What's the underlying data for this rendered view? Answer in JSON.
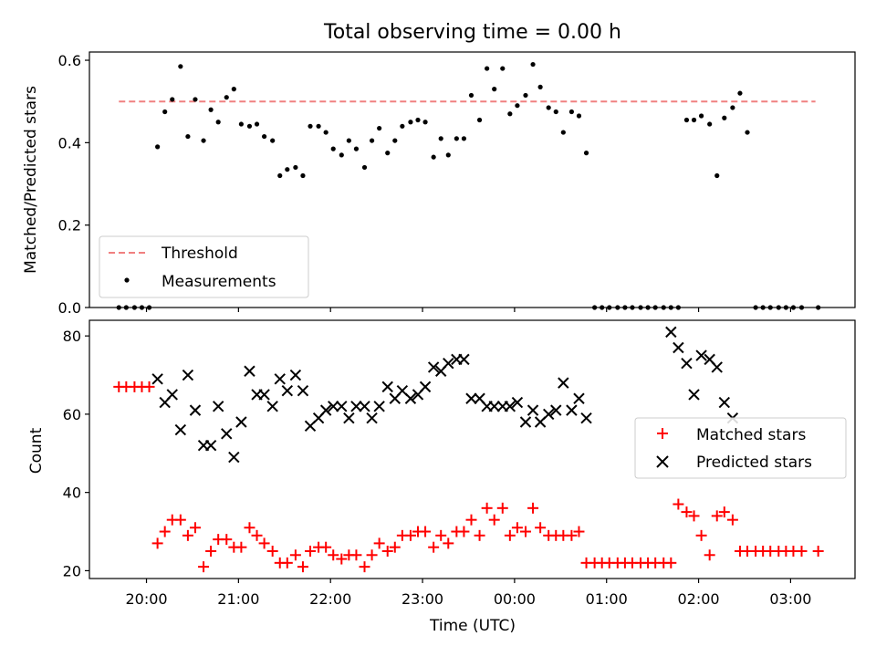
{
  "chart_data": [
    {
      "type": "scatter",
      "title": "Total observing time = 0.00 h",
      "xlabel": "",
      "ylabel": "Matched/Predicted stars",
      "xlim_hours": [
        19.38,
        27.7
      ],
      "ylim": [
        0.0,
        0.62
      ],
      "yticks": [
        0.0,
        0.2,
        0.4,
        0.6
      ],
      "ytick_labels": [
        "0.0",
        "0.2",
        "0.4",
        "0.6"
      ],
      "grid": false,
      "legend_placement": "lower-left",
      "threshold": {
        "name": "Threshold",
        "value": 0.5,
        "x_range_hours": [
          19.7,
          27.27
        ],
        "color": "#f08080"
      },
      "series": [
        {
          "name": "Measurements",
          "color": "#000000",
          "x_hours": [
            19.7,
            19.78,
            19.87,
            19.95,
            20.03,
            20.12,
            20.2,
            20.28,
            20.37,
            20.45,
            20.53,
            20.62,
            20.7,
            20.78,
            20.87,
            20.95,
            21.03,
            21.12,
            21.2,
            21.28,
            21.37,
            21.45,
            21.53,
            21.62,
            21.7,
            21.78,
            21.87,
            21.95,
            22.03,
            22.12,
            22.2,
            22.28,
            22.37,
            22.45,
            22.53,
            22.62,
            22.7,
            22.78,
            22.87,
            22.95,
            23.03,
            23.12,
            23.2,
            23.28,
            23.37,
            23.45,
            23.53,
            23.62,
            23.7,
            23.78,
            23.87,
            23.95,
            24.03,
            24.12,
            24.2,
            24.28,
            24.37,
            24.45,
            24.53,
            24.62,
            24.7,
            24.78,
            24.87,
            24.95,
            25.03,
            25.12,
            25.2,
            25.28,
            25.37,
            25.45,
            25.53,
            25.62,
            25.7,
            25.78,
            25.87,
            25.95,
            26.03,
            26.12,
            26.2,
            26.28,
            26.37,
            26.45,
            26.53,
            26.62,
            26.7,
            26.78,
            26.87,
            26.95,
            27.03,
            27.12,
            27.3
          ],
          "y": [
            0.0,
            0.0,
            0.0,
            0.0,
            0.0,
            0.39,
            0.475,
            0.505,
            0.585,
            0.415,
            0.505,
            0.405,
            0.48,
            0.45,
            0.51,
            0.53,
            0.445,
            0.44,
            0.445,
            0.415,
            0.405,
            0.32,
            0.335,
            0.34,
            0.32,
            0.44,
            0.44,
            0.425,
            0.385,
            0.37,
            0.405,
            0.385,
            0.34,
            0.405,
            0.435,
            0.375,
            0.405,
            0.44,
            0.45,
            0.455,
            0.45,
            0.365,
            0.41,
            0.37,
            0.41,
            0.41,
            0.515,
            0.455,
            0.58,
            0.53,
            0.58,
            0.47,
            0.49,
            0.515,
            0.59,
            0.535,
            0.485,
            0.475,
            0.425,
            0.475,
            0.465,
            0.375,
            0.0,
            0.0,
            0.0,
            0.0,
            0.0,
            0.0,
            0.0,
            0.0,
            0.0,
            0.0,
            0.0,
            0.0,
            0.455,
            0.455,
            0.465,
            0.445,
            0.32,
            0.46,
            0.485,
            0.52,
            0.425,
            0.0,
            0.0,
            0.0,
            0.0,
            0.0,
            0.0,
            0.0,
            0.0
          ]
        }
      ]
    },
    {
      "type": "scatter",
      "title": "",
      "xlabel": "Time (UTC)",
      "ylabel": "Count",
      "xlim_hours": [
        19.38,
        27.7
      ],
      "ylim": [
        18,
        84
      ],
      "yticks": [
        20,
        40,
        60,
        80
      ],
      "ytick_labels": [
        "20",
        "40",
        "60",
        "80"
      ],
      "xticks_hours": [
        20,
        21,
        22,
        23,
        24,
        25,
        26,
        27
      ],
      "xtick_labels": [
        "20:00",
        "21:00",
        "22:00",
        "23:00",
        "00:00",
        "01:00",
        "02:00",
        "03:00"
      ],
      "grid": false,
      "legend_placement": "center-right",
      "series": [
        {
          "name": "Matched stars",
          "marker": "plus",
          "color": "#ff0000",
          "x_hours": [
            19.7,
            19.78,
            19.87,
            19.95,
            20.03,
            20.12,
            20.2,
            20.28,
            20.37,
            20.45,
            20.53,
            20.62,
            20.7,
            20.78,
            20.87,
            20.95,
            21.03,
            21.12,
            21.2,
            21.28,
            21.37,
            21.45,
            21.53,
            21.62,
            21.7,
            21.78,
            21.87,
            21.95,
            22.03,
            22.12,
            22.2,
            22.28,
            22.37,
            22.45,
            22.53,
            22.62,
            22.7,
            22.78,
            22.87,
            22.95,
            23.03,
            23.12,
            23.2,
            23.28,
            23.37,
            23.45,
            23.53,
            23.62,
            23.7,
            23.78,
            23.87,
            23.95,
            24.03,
            24.12,
            24.2,
            24.28,
            24.37,
            24.45,
            24.53,
            24.62,
            24.7,
            24.78,
            24.87,
            24.95,
            25.03,
            25.12,
            25.2,
            25.28,
            25.37,
            25.45,
            25.53,
            25.62,
            25.7,
            25.78,
            25.87,
            25.95,
            26.03,
            26.12,
            26.2,
            26.28,
            26.37,
            26.45,
            26.53,
            26.62,
            26.7,
            26.78,
            26.87,
            26.95,
            27.03,
            27.12,
            27.3
          ],
          "y": [
            67,
            67,
            67,
            67,
            67,
            27,
            30,
            33,
            33,
            29,
            31,
            21,
            25,
            28,
            28,
            26,
            26,
            31,
            29,
            27,
            25,
            22,
            22,
            24,
            21,
            25,
            26,
            26,
            24,
            23,
            24,
            24,
            21,
            24,
            27,
            25,
            26,
            29,
            29,
            30,
            30,
            26,
            29,
            27,
            30,
            30,
            33,
            29,
            36,
            33,
            36,
            29,
            31,
            30,
            36,
            31,
            29,
            29,
            29,
            29,
            30,
            22,
            22,
            22,
            22,
            22,
            22,
            22,
            22,
            22,
            22,
            22,
            22,
            37,
            35,
            34,
            29,
            24,
            34,
            35,
            33,
            25,
            25,
            25,
            25,
            25,
            25,
            25,
            25,
            25,
            25
          ]
        },
        {
          "name": "Predicted stars",
          "marker": "x",
          "color": "#000000",
          "x_hours": [
            20.12,
            20.2,
            20.28,
            20.37,
            20.45,
            20.53,
            20.62,
            20.7,
            20.78,
            20.87,
            20.95,
            21.03,
            21.12,
            21.2,
            21.28,
            21.37,
            21.45,
            21.53,
            21.62,
            21.7,
            21.78,
            21.87,
            21.95,
            22.03,
            22.12,
            22.2,
            22.28,
            22.37,
            22.45,
            22.53,
            22.62,
            22.7,
            22.78,
            22.87,
            22.95,
            23.03,
            23.12,
            23.2,
            23.28,
            23.37,
            23.45,
            23.53,
            23.62,
            23.7,
            23.78,
            23.87,
            23.95,
            24.03,
            24.12,
            24.2,
            24.28,
            24.37,
            24.45,
            24.53,
            24.62,
            24.7,
            24.78,
            25.7,
            25.78,
            25.87,
            25.95,
            26.03,
            26.12,
            26.2,
            26.28,
            26.37
          ],
          "y": [
            69,
            63,
            65,
            56,
            70,
            61,
            52,
            52,
            62,
            55,
            49,
            58,
            71,
            65,
            65,
            62,
            69,
            66,
            70,
            66,
            57,
            59,
            61,
            62,
            62,
            59,
            62,
            62,
            59,
            62,
            67,
            64,
            66,
            64,
            65,
            67,
            72,
            71,
            73,
            74,
            74,
            64,
            64,
            62,
            62,
            62,
            62,
            63,
            58,
            61,
            58,
            60,
            61,
            68,
            61,
            64,
            59,
            81,
            77,
            73,
            65,
            75,
            74,
            72,
            63,
            59
          ]
        }
      ]
    }
  ],
  "legend_top": {
    "threshold_label": "Threshold",
    "measurements_label": "Measurements"
  },
  "legend_bottom": {
    "matched_label": "Matched stars",
    "predicted_label": "Predicted stars"
  }
}
